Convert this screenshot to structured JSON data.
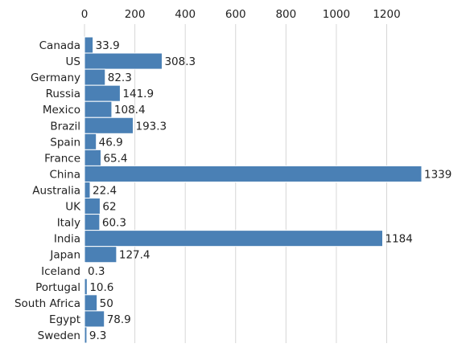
{
  "chart_data": {
    "type": "bar",
    "orientation": "horizontal",
    "title": "",
    "xlabel": "",
    "ylabel": "",
    "categories": [
      "Canada",
      "US",
      "Germany",
      "Russia",
      "Mexico",
      "Brazil",
      "Spain",
      "France",
      "China",
      "Australia",
      "UK",
      "Italy",
      "India",
      "Japan",
      "Iceland",
      "Portugal",
      "South Africa",
      "Egypt",
      "Sweden"
    ],
    "values": [
      33.9,
      308.3,
      82.3,
      141.9,
      108.4,
      193.3,
      46.9,
      65.4,
      1339,
      22.4,
      62,
      60.3,
      1184,
      127.4,
      0.3,
      10.6,
      50,
      78.9,
      9.3
    ],
    "value_labels": [
      "33.9",
      "308.3",
      "82.3",
      "141.9",
      "108.4",
      "193.3",
      "46.9",
      "65.4",
      "1339",
      "22.4",
      "62",
      "60.3",
      "1184",
      "127.4",
      "0.3",
      "10.6",
      "50",
      "78.9",
      "9.3"
    ],
    "xlim": [
      0,
      1339
    ],
    "x_ticks": [
      0,
      200,
      400,
      600,
      800,
      1000,
      1200
    ],
    "x_axis_position": "top",
    "grid": true,
    "legend": "none",
    "bar_color": "#4a80b5"
  }
}
